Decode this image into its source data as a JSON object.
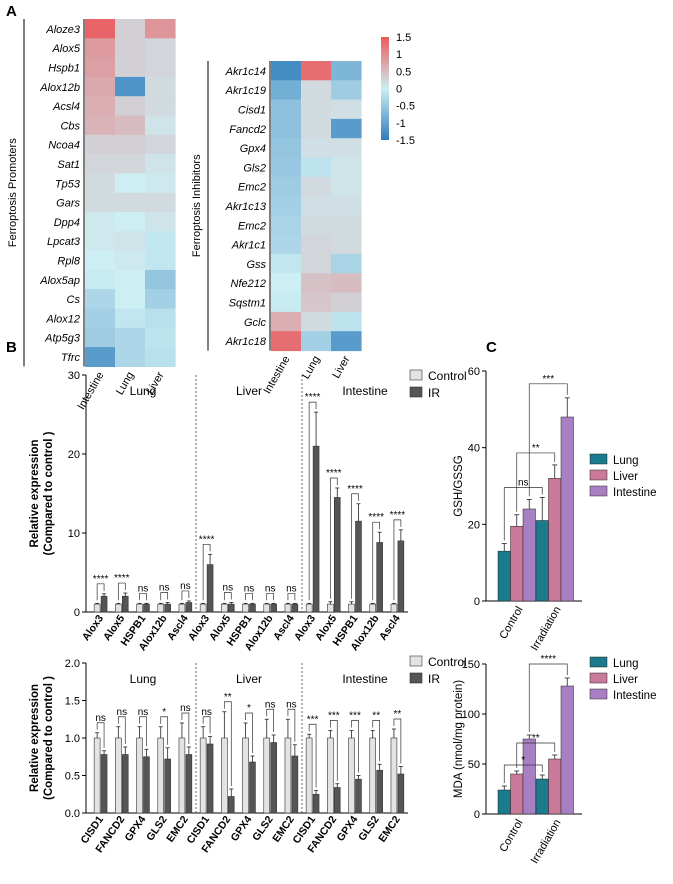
{
  "panel_labels": {
    "a": "A",
    "b": "B",
    "c": "C"
  },
  "colors": {
    "scale": [
      "#2f7dbd",
      "#cdeef3",
      "#ea5a5e"
    ],
    "control_bar": "#e3e3e3",
    "ir_bar": "#555555",
    "lung": "#1b7a8c",
    "liver": "#c97a9b",
    "intestine": "#a97fc3"
  },
  "heatmap_colorbar": {
    "ticks": [
      "1.5",
      "1",
      "0.5",
      "0",
      "-0.5",
      "-1",
      "-1.5"
    ],
    "min": -1.5,
    "max": 1.5
  },
  "heatmap_promoters": {
    "group_label": "Ferroptosis Promoters",
    "columns": [
      "Intestine",
      "Lung",
      "Liver"
    ],
    "rows": [
      {
        "gene": "Aloze3",
        "values": [
          1.4,
          0.3,
          0.9
        ]
      },
      {
        "gene": "Alox5",
        "values": [
          0.85,
          0.3,
          0.25
        ]
      },
      {
        "gene": "Hspb1",
        "values": [
          0.8,
          0.3,
          0.25
        ]
      },
      {
        "gene": "Alox12b",
        "values": [
          0.7,
          -1.2,
          0.2
        ]
      },
      {
        "gene": "Acsl4",
        "values": [
          0.65,
          0.3,
          0.2
        ]
      },
      {
        "gene": "Cbs",
        "values": [
          0.6,
          0.5,
          0.1
        ]
      },
      {
        "gene": "Ncoa4",
        "values": [
          0.3,
          0.3,
          0.25
        ]
      },
      {
        "gene": "Sat1",
        "values": [
          0.25,
          0.25,
          0.1
        ]
      },
      {
        "gene": "Tp53",
        "values": [
          0.2,
          0.0,
          0.05
        ]
      },
      {
        "gene": "Gars",
        "values": [
          0.2,
          0.2,
          0.2
        ]
      },
      {
        "gene": "Dpp4",
        "values": [
          0.05,
          0.0,
          0.1
        ]
      },
      {
        "gene": "Lpcat3",
        "values": [
          0.05,
          0.1,
          -0.1
        ]
      },
      {
        "gene": "Rpl8",
        "values": [
          0.0,
          0.05,
          -0.1
        ]
      },
      {
        "gene": "Alox5ap",
        "values": [
          -0.05,
          0.0,
          -0.55
        ]
      },
      {
        "gene": "Cs",
        "values": [
          -0.3,
          0.0,
          -0.4
        ]
      },
      {
        "gene": "Alox12",
        "values": [
          -0.4,
          -0.1,
          -0.2
        ]
      },
      {
        "gene": "Atp5g3",
        "values": [
          -0.45,
          -0.3,
          -0.15
        ]
      },
      {
        "gene": "Tfrc",
        "values": [
          -1.1,
          -0.3,
          -0.2
        ]
      }
    ]
  },
  "heatmap_inhibitors": {
    "group_label": "Ferroptosis Inhibitors",
    "columns": [
      "Intestine",
      "Lung",
      "Liver"
    ],
    "rows": [
      {
        "gene": "Akr1c14",
        "values": [
          -1.3,
          1.3,
          -0.75
        ]
      },
      {
        "gene": "Akr1c19",
        "values": [
          -0.85,
          0.2,
          -0.45
        ]
      },
      {
        "gene": "Cisd1",
        "values": [
          -0.6,
          0.2,
          0.15
        ]
      },
      {
        "gene": "Fancd2",
        "values": [
          -0.6,
          0.2,
          -1.1
        ]
      },
      {
        "gene": "Gpx4",
        "values": [
          -0.55,
          0.15,
          0.15
        ]
      },
      {
        "gene": "Gls2",
        "values": [
          -0.5,
          -0.15,
          0.1
        ]
      },
      {
        "gene": "Emc2",
        "values": [
          -0.45,
          0.2,
          0.1
        ]
      },
      {
        "gene": "Akr1c13",
        "values": [
          -0.4,
          0.15,
          0.15
        ]
      },
      {
        "gene": "Emc2",
        "values": [
          -0.35,
          0.2,
          0.2
        ]
      },
      {
        "gene": "Akr1c1",
        "values": [
          -0.3,
          0.25,
          0.2
        ]
      },
      {
        "gene": "Gss",
        "values": [
          -0.1,
          0.25,
          -0.35
        ]
      },
      {
        "gene": "Nfe212",
        "values": [
          0.0,
          0.45,
          0.5
        ]
      },
      {
        "gene": "Sqstm1",
        "values": [
          -0.05,
          0.4,
          0.3
        ]
      },
      {
        "gene": "Gclc",
        "values": [
          0.65,
          0.2,
          -0.15
        ]
      },
      {
        "gene": "Akr1c18",
        "values": [
          1.3,
          -0.4,
          -1.1
        ]
      }
    ]
  },
  "chart_data": [
    {
      "type": "bar",
      "ylabel": "Relative expression\n(Compared to control )",
      "ylim": [
        0,
        30
      ],
      "yticks": [
        "0",
        "10",
        "20",
        "30"
      ],
      "groups": [
        "Lung",
        "Liver",
        "Intestine"
      ],
      "legend": [
        "Control",
        "IR"
      ],
      "categories": [
        "Alox3",
        "Alox5",
        "HSPB1",
        "Alox12b",
        "Ascl4",
        "Alox3",
        "Alox5",
        "HSPB1",
        "Alox12b",
        "Ascl4",
        "Alox3",
        "Alox5",
        "HSPB1",
        "Alox12b",
        "Ascl4"
      ],
      "series": [
        {
          "name": "Control",
          "values": [
            1,
            1,
            1,
            1,
            1,
            1,
            1,
            1,
            1,
            1,
            1,
            1,
            1,
            1,
            1
          ],
          "errors": [
            0.1,
            0.1,
            0.1,
            0.1,
            0.1,
            0.1,
            0.1,
            0.1,
            0.1,
            0.1,
            0.1,
            0.3,
            0.3,
            0.1,
            0.1
          ]
        },
        {
          "name": "IR",
          "values": [
            2,
            2,
            1,
            1,
            1.2,
            6,
            1,
            1,
            1,
            1,
            21,
            14.5,
            11.5,
            8.8,
            9
          ],
          "errors": [
            0.3,
            0.4,
            0.1,
            0.2,
            0.2,
            1.3,
            0.2,
            0.1,
            0.1,
            0.1,
            4.3,
            1.2,
            2.2,
            1.3,
            1.4
          ]
        }
      ],
      "significance": [
        "****",
        "****",
        "ns",
        "ns",
        "ns",
        "****",
        "ns",
        "ns",
        "ns",
        "ns",
        "****",
        "****",
        "****",
        "****",
        "****"
      ]
    },
    {
      "type": "bar",
      "ylabel": "Relative expression\n(Compared to control )",
      "ylim": [
        0,
        2.0
      ],
      "yticks": [
        "0.0",
        "0.5",
        "1.0",
        "1.5",
        "2.0"
      ],
      "groups": [
        "Lung",
        "Liver",
        "Intestine"
      ],
      "legend": [
        "Control",
        "IR"
      ],
      "categories": [
        "CISD1",
        "FANCD2",
        "GPX4",
        "GLS2",
        "EMC2",
        "CISD1",
        "FANCD2",
        "GPX4",
        "GLS2",
        "EMC2",
        "CISD1",
        "FANCD2",
        "GPX4",
        "GLS2",
        "EMC2"
      ],
      "series": [
        {
          "name": "Control",
          "values": [
            1,
            1,
            1,
            1,
            1,
            1,
            1,
            1,
            1,
            1,
            1,
            1,
            1,
            1,
            1
          ],
          "errors": [
            0.07,
            0.15,
            0.15,
            0.15,
            0.2,
            0.15,
            0.35,
            0.2,
            0.25,
            0.25,
            0.05,
            0.1,
            0.1,
            0.1,
            0.12
          ]
        },
        {
          "name": "IR",
          "values": [
            0.78,
            0.78,
            0.75,
            0.72,
            0.78,
            0.92,
            0.22,
            0.68,
            0.94,
            0.76,
            0.25,
            0.34,
            0.45,
            0.57,
            0.52
          ],
          "errors": [
            0.05,
            0.1,
            0.1,
            0.15,
            0.1,
            0.1,
            0.1,
            0.08,
            0.1,
            0.15,
            0.05,
            0.05,
            0.05,
            0.08,
            0.1
          ]
        }
      ],
      "significance": [
        "ns",
        "ns",
        "ns",
        "*",
        "ns",
        "ns",
        "**",
        "*",
        "ns",
        "ns",
        "***",
        "***",
        "***",
        "**",
        "**"
      ]
    },
    {
      "type": "bar",
      "ylabel": "GSH/GSSG",
      "ylim": [
        0,
        60
      ],
      "yticks": [
        "0",
        "20",
        "40",
        "60"
      ],
      "categories": [
        "Control",
        "Irradiation"
      ],
      "series": [
        {
          "name": "Lung",
          "values": [
            13,
            21
          ],
          "errors": [
            2,
            6
          ]
        },
        {
          "name": "Liver",
          "values": [
            19.5,
            32
          ],
          "errors": [
            3,
            3.5
          ]
        },
        {
          "name": "Intestine",
          "values": [
            24,
            48
          ],
          "errors": [
            2.5,
            5
          ]
        }
      ],
      "significance": [
        {
          "from": [
            0,
            0
          ],
          "to": [
            1,
            0
          ],
          "label": "ns"
        },
        {
          "from": [
            0,
            1
          ],
          "to": [
            1,
            1
          ],
          "label": "**"
        },
        {
          "from": [
            0,
            2
          ],
          "to": [
            1,
            2
          ],
          "label": "***"
        }
      ]
    },
    {
      "type": "bar",
      "ylabel": "MDA (nmol/mg protein)",
      "ylim": [
        0,
        150
      ],
      "yticks": [
        "0",
        "50",
        "100",
        "150"
      ],
      "categories": [
        "Control",
        "Irradiation"
      ],
      "series": [
        {
          "name": "Lung",
          "values": [
            24,
            35
          ],
          "errors": [
            4,
            4
          ]
        },
        {
          "name": "Liver",
          "values": [
            40,
            55
          ],
          "errors": [
            3,
            4
          ]
        },
        {
          "name": "Intestine",
          "values": [
            75,
            128
          ],
          "errors": [
            4,
            8
          ]
        }
      ],
      "significance": [
        {
          "from": [
            0,
            0
          ],
          "to": [
            1,
            0
          ],
          "label": "*"
        },
        {
          "from": [
            0,
            1
          ],
          "to": [
            1,
            1
          ],
          "label": "**"
        },
        {
          "from": [
            0,
            2
          ],
          "to": [
            1,
            2
          ],
          "label": "****"
        }
      ]
    }
  ]
}
